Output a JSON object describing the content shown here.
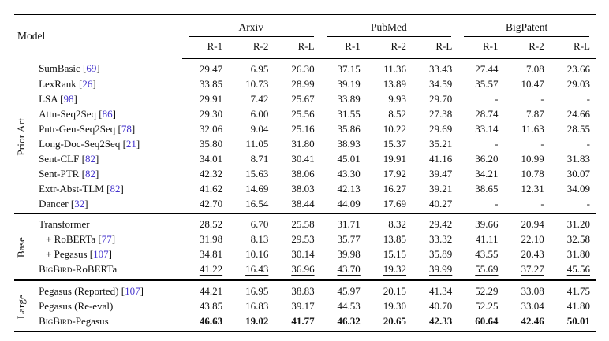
{
  "table": {
    "citation_color": "#4433cc",
    "header": {
      "model_label": "Model",
      "groups": [
        "Arxiv",
        "PubMed",
        "BigPatent"
      ],
      "metrics": [
        "R-1",
        "R-2",
        "R-L"
      ]
    },
    "row_groups": [
      {
        "label": "Prior Art",
        "rows": [
          {
            "name": "SumBasic",
            "cite": "69",
            "values": [
              "29.47",
              "6.95",
              "26.30",
              "37.15",
              "11.36",
              "33.43",
              "27.44",
              "7.08",
              "23.66"
            ]
          },
          {
            "name": "LexRank",
            "cite": "26",
            "values": [
              "33.85",
              "10.73",
              "28.99",
              "39.19",
              "13.89",
              "34.59",
              "35.57",
              "10.47",
              "29.03"
            ]
          },
          {
            "name": "LSA",
            "cite": "98",
            "values": [
              "29.91",
              "7.42",
              "25.67",
              "33.89",
              "9.93",
              "29.70",
              "-",
              "-",
              "-"
            ]
          },
          {
            "name": "Attn-Seq2Seq",
            "cite": "86",
            "values": [
              "29.30",
              "6.00",
              "25.56",
              "31.55",
              "8.52",
              "27.38",
              "28.74",
              "7.87",
              "24.66"
            ]
          },
          {
            "name": "Pntr-Gen-Seq2Seq",
            "cite": "78",
            "values": [
              "32.06",
              "9.04",
              "25.16",
              "35.86",
              "10.22",
              "29.69",
              "33.14",
              "11.63",
              "28.55"
            ]
          },
          {
            "name": "Long-Doc-Seq2Seq",
            "cite": "21",
            "values": [
              "35.80",
              "11.05",
              "31.80",
              "38.93",
              "15.37",
              "35.21",
              "-",
              "-",
              "-"
            ]
          },
          {
            "name": "Sent-CLF",
            "cite": "82",
            "values": [
              "34.01",
              "8.71",
              "30.41",
              "45.01",
              "19.91",
              "41.16",
              "36.20",
              "10.99",
              "31.83"
            ]
          },
          {
            "name": "Sent-PTR",
            "cite": "82",
            "values": [
              "42.32",
              "15.63",
              "38.06",
              "43.30",
              "17.92",
              "39.47",
              "34.21",
              "10.78",
              "30.07"
            ]
          },
          {
            "name": "Extr-Abst-TLM",
            "cite": "82",
            "values": [
              "41.62",
              "14.69",
              "38.03",
              "42.13",
              "16.27",
              "39.21",
              "38.65",
              "12.31",
              "34.09"
            ]
          },
          {
            "name": "Dancer",
            "cite": "32",
            "values": [
              "42.70",
              "16.54",
              "38.44",
              "44.09",
              "17.69",
              "40.27",
              "-",
              "-",
              "-"
            ]
          }
        ]
      },
      {
        "label": "Base",
        "separator": "single",
        "rows": [
          {
            "name": "Transformer",
            "values": [
              "28.52",
              "6.70",
              "25.58",
              "31.71",
              "8.32",
              "29.42",
              "39.66",
              "20.94",
              "31.20"
            ]
          },
          {
            "name": "+ RoBERTa",
            "cite": "77",
            "indent": true,
            "values": [
              "31.98",
              "8.13",
              "29.53",
              "35.77",
              "13.85",
              "33.32",
              "41.11",
              "22.10",
              "32.58"
            ]
          },
          {
            "name": "+ Pegasus",
            "cite": "107",
            "indent": true,
            "values": [
              "34.81",
              "10.16",
              "30.14",
              "39.98",
              "15.15",
              "35.89",
              "43.55",
              "20.43",
              "31.80"
            ]
          },
          {
            "sc": "BigBird",
            "name": "-RoBERTa",
            "emph": "underline",
            "values": [
              "41.22",
              "16.43",
              "36.96",
              "43.70",
              "19.32",
              "39.99",
              "55.69",
              "37.27",
              "45.56"
            ]
          }
        ]
      },
      {
        "label": "Large",
        "separator": "double",
        "rows": [
          {
            "name": "Pegasus (Reported)",
            "cite": "107",
            "values": [
              "44.21",
              "16.95",
              "38.83",
              "45.97",
              "20.15",
              "41.34",
              "52.29",
              "33.08",
              "41.75"
            ]
          },
          {
            "name": "Pegasus (Re-eval)",
            "values": [
              "43.85",
              "16.83",
              "39.17",
              "44.53",
              "19.30",
              "40.70",
              "52.25",
              "33.04",
              "41.80"
            ]
          },
          {
            "sc": "BigBird",
            "name": "-Pegasus",
            "emph": "bold",
            "values": [
              "46.63",
              "19.02",
              "41.77",
              "46.32",
              "20.65",
              "42.33",
              "60.64",
              "42.46",
              "50.01"
            ]
          }
        ]
      }
    ]
  }
}
